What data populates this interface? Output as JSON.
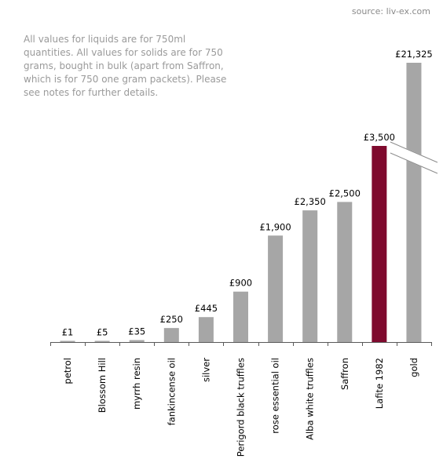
{
  "source": "source: liv-ex.com",
  "note": "All values for liquids are for 750ml quantities. All values for solids are for 750 grams, bought in bulk (apart from Saffron, which is for 750 one gram packets).  Please see notes for further details.",
  "chart_data": {
    "type": "bar",
    "categories": [
      "petrol",
      "Blossom Hill",
      "myrrh resin",
      "fankincense oil",
      "silver",
      "Perigord black truffles",
      "rose essential oil",
      "Alba white truffles",
      "Saffron",
      "Lafite 1982",
      "gold"
    ],
    "values": [
      1,
      5,
      35,
      250,
      445,
      900,
      1900,
      2350,
      2500,
      3500,
      21325
    ],
    "labels": [
      "£1",
      "£5",
      "£35",
      "£250",
      "£445",
      "£900",
      "£1,900",
      "£2,350",
      "£2,500",
      "£3,500",
      "£21,325"
    ],
    "highlight": "Lafite 1982",
    "axis_break": "gold",
    "ylim": [
      0,
      3500
    ],
    "colors": {
      "bar": "#a6a6a6",
      "highlight": "#7f0a2e",
      "axis": "#595959"
    }
  }
}
